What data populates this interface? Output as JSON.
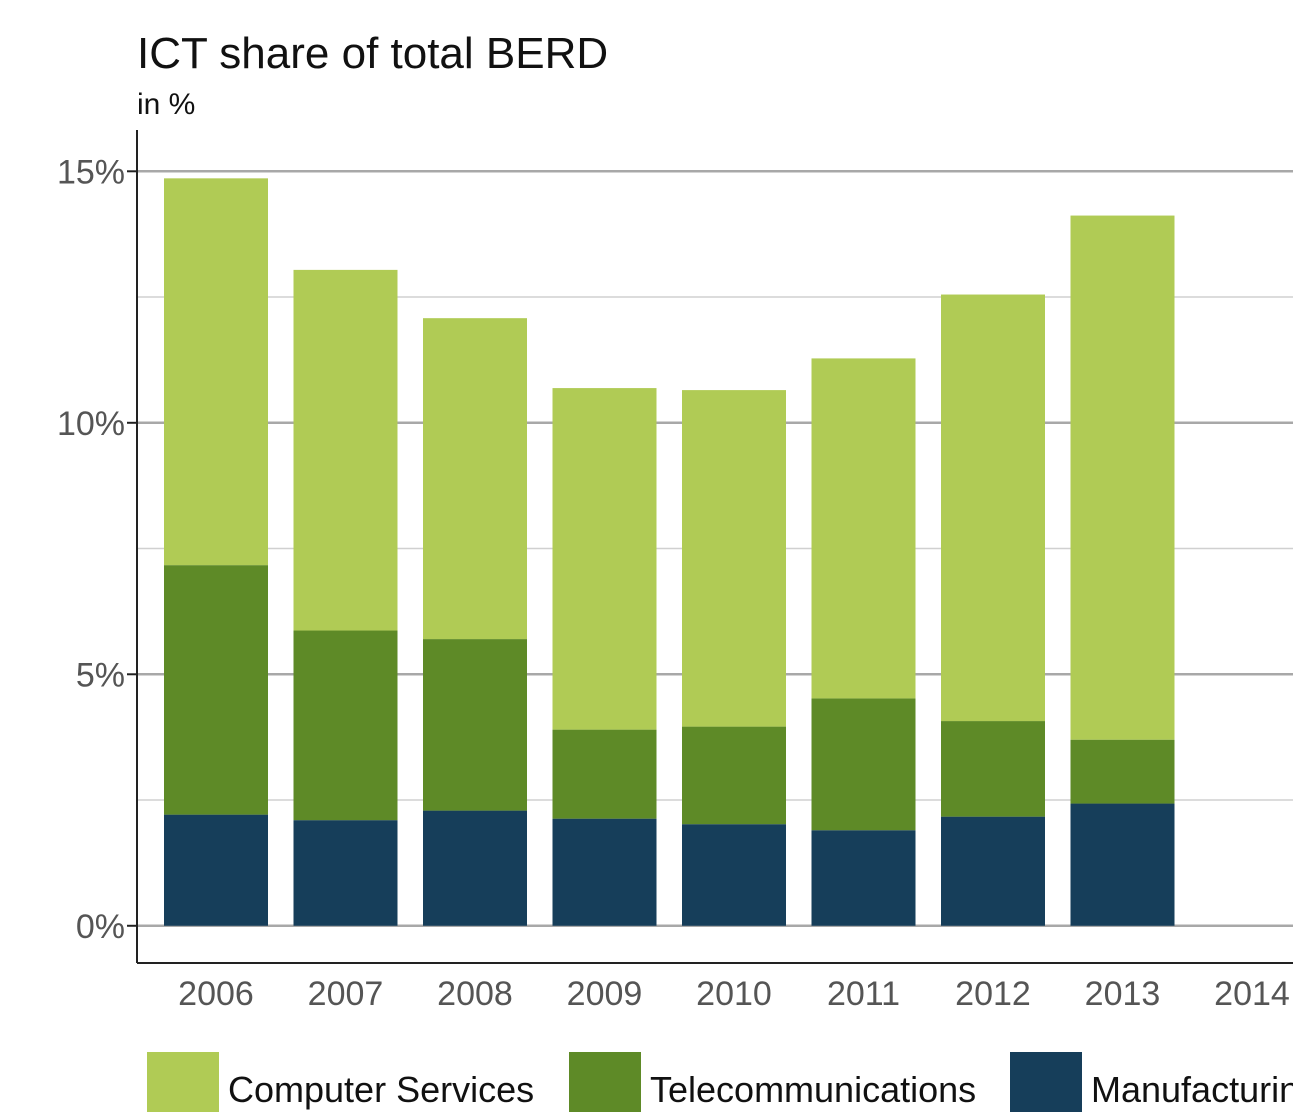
{
  "chart_data": {
    "type": "stacked_bar",
    "title": "ICT share of total BERD",
    "subtitle": "in %",
    "categories": [
      "2006",
      "2007",
      "2008",
      "2009",
      "2010",
      "2011",
      "2012",
      "2013",
      "2014"
    ],
    "series": [
      {
        "name": "Computer Services",
        "color": "#b0cb55",
        "values": [
          7.69,
          7.17,
          6.38,
          6.79,
          6.69,
          6.76,
          8.48,
          10.42,
          null
        ]
      },
      {
        "name": "Telecommunications",
        "color": "#5e8a27",
        "values": [
          4.96,
          3.77,
          3.41,
          1.77,
          1.94,
          2.62,
          1.9,
          1.27,
          null
        ]
      },
      {
        "name": "Manufacturing",
        "color": "#163e5a",
        "values": [
          2.21,
          2.1,
          2.29,
          2.13,
          2.02,
          1.9,
          2.17,
          2.43,
          null
        ]
      }
    ],
    "ylim": [
      -0.74,
      16
    ],
    "yticks": [
      {
        "value": 0,
        "label": "0%"
      },
      {
        "value": 5,
        "label": "5%"
      },
      {
        "value": 10,
        "label": "10%"
      },
      {
        "value": 15,
        "label": "15%"
      }
    ],
    "minor_yticks": [
      2.5,
      7.5,
      12.5
    ],
    "grid": true,
    "legend": "bottom"
  }
}
